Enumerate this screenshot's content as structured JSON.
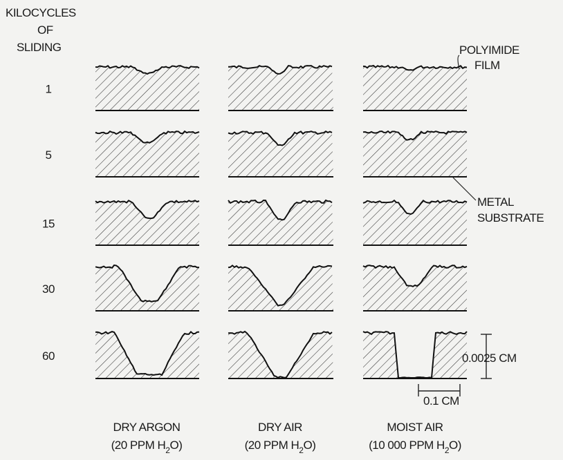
{
  "row_header": [
    "KILOCYCLES",
    "OF",
    "SLIDING"
  ],
  "rows": [
    "1",
    "5",
    "15",
    "30",
    "60"
  ],
  "columns": [
    {
      "name": "DRY ARGON",
      "condition": {
        "prefix": "(20 PPM H",
        "sub": "2",
        "suffix": "O)"
      }
    },
    {
      "name": "DRY AIR",
      "condition": {
        "prefix": "(20 PPM H",
        "sub": "2",
        "suffix": "O)"
      }
    },
    {
      "name": "MOIST AIR",
      "condition": {
        "prefix": "(10 000 PPM H",
        "sub": "2",
        "suffix": "O)"
      }
    }
  ],
  "annotations": {
    "film": [
      "POLYIMIDE",
      "FILM"
    ],
    "substrate": [
      "METAL",
      "SUBSTRATE"
    ],
    "thickness_scale": "0.0025 CM",
    "width_scale": "0.1 CM"
  }
}
